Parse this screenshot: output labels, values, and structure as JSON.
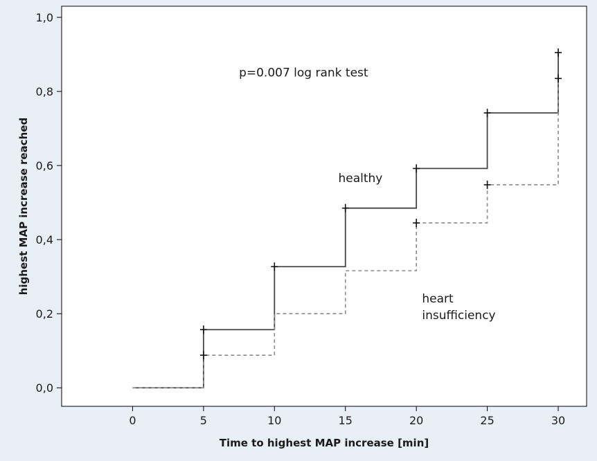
{
  "colors": {
    "background": "#e9eff6",
    "plot_area": "#ffffff",
    "healthy_line": "#444444",
    "heart_line": "#8a8a8a",
    "censor_mark": "#111111"
  },
  "chart_data": {
    "type": "line",
    "plot_style": "step",
    "title": "",
    "xlabel": "Time to highest MAP increase [min]",
    "ylabel": "highest MAP increase reached",
    "xlim": [
      -5,
      32
    ],
    "ylim": [
      -0.05,
      1.03
    ],
    "x_ticks": [
      0,
      5,
      10,
      15,
      20,
      25,
      30
    ],
    "x_tick_labels": [
      "0",
      "5",
      "10",
      "15",
      "20",
      "25",
      "30"
    ],
    "y_ticks": [
      0,
      0.2,
      0.4,
      0.6,
      0.8,
      1.0
    ],
    "y_tick_labels": [
      "0,0",
      "0,2",
      "0,4",
      "0,6",
      "0,8",
      "1,0"
    ],
    "grid": false,
    "annotations": [
      {
        "text": "p=0.007 log rank test",
        "x": 7.5,
        "y": 0.84
      },
      {
        "text": "healthy",
        "x": 14.5,
        "y": 0.555
      },
      {
        "text": "heart",
        "x": 20.4,
        "y": 0.23
      },
      {
        "text": "insufficiency",
        "x": 20.4,
        "y": 0.185
      }
    ],
    "series": [
      {
        "name": "healthy",
        "style": "solid",
        "x": [
          0,
          5,
          10,
          15,
          20,
          25,
          30
        ],
        "y": [
          0.0,
          0.157,
          0.327,
          0.485,
          0.592,
          0.742,
          0.905
        ],
        "censored": [
          [
            5,
            0.157
          ],
          [
            10,
            0.327
          ],
          [
            15,
            0.485
          ],
          [
            20,
            0.592
          ],
          [
            25,
            0.742
          ],
          [
            30,
            0.905
          ]
        ]
      },
      {
        "name": "heart insufficiency",
        "style": "dashed",
        "x": [
          0,
          5,
          10,
          15,
          20,
          25,
          30
        ],
        "y": [
          0.0,
          0.088,
          0.2,
          0.316,
          0.445,
          0.548,
          0.835
        ],
        "censored": [
          [
            5,
            0.088
          ],
          [
            20,
            0.445
          ],
          [
            25,
            0.548
          ],
          [
            30,
            0.835
          ]
        ]
      }
    ]
  }
}
